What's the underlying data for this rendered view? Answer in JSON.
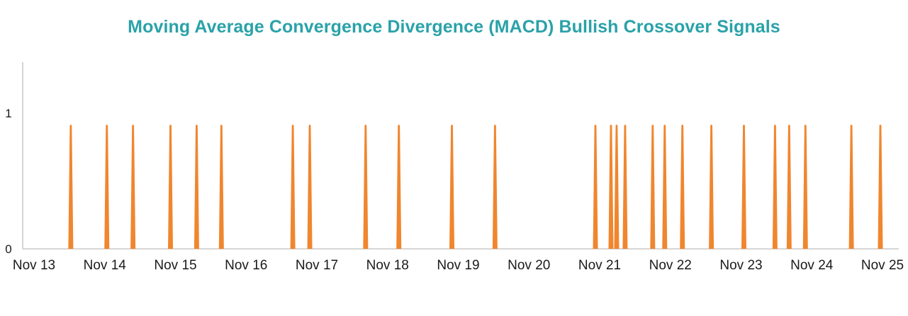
{
  "page": {
    "title": "Moving Average Convergence Divergence (MACD) Bullish Crossover Signals"
  },
  "chart_data": {
    "type": "bar",
    "title": "Moving Average Convergence Divergence (MACD) Bullish Crossover Signals",
    "xlabel": "",
    "ylabel": "",
    "x_tick_labels": [
      "Nov 13",
      "Nov 14",
      "Nov 15",
      "Nov 16",
      "Nov 17",
      "Nov 18",
      "Nov 19",
      "Nov 20",
      "Nov 21",
      "Nov 22",
      "Nov 23",
      "Nov 24",
      "Nov 25"
    ],
    "y_tick_labels": [
      "0",
      "1"
    ],
    "ylim": [
      0,
      1.375
    ],
    "xlim_days_from_nov13": [
      0,
      12
    ],
    "signal_height": 0.92,
    "spike_positions_days_from_nov13": [
      0.52,
      1.03,
      1.4,
      1.93,
      2.3,
      2.65,
      3.66,
      3.9,
      4.69,
      5.16,
      5.91,
      6.52,
      7.94,
      8.16,
      8.24,
      8.36,
      8.75,
      8.92,
      9.17,
      9.58,
      10.04,
      10.48,
      10.68,
      10.91,
      11.56,
      11.97
    ],
    "grid": false,
    "legend": "none",
    "bar_color": "#F0862E",
    "title_color": "#2AA2A8",
    "axis_color": "#C9C9C9",
    "tick_label_color": "#1A1A1A"
  }
}
